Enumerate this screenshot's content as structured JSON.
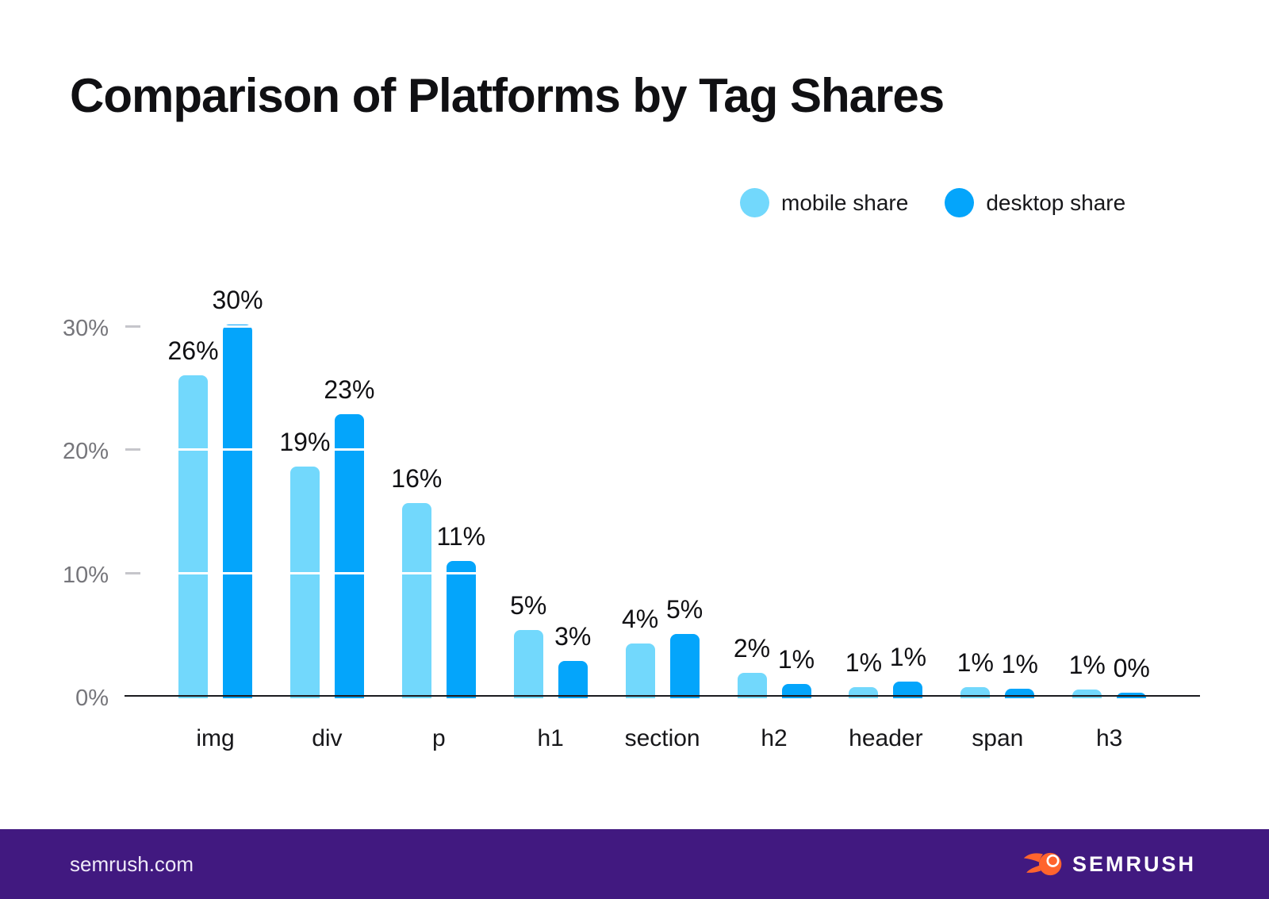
{
  "title": "Comparison of Platforms by Tag Shares",
  "chart_data": {
    "type": "bar",
    "title": "Comparison of Platforms by Tag Shares",
    "xlabel": "",
    "ylabel": "",
    "categories": [
      "img",
      "div",
      "p",
      "h1",
      "section",
      "h2",
      "header",
      "span",
      "h3"
    ],
    "series": [
      {
        "name": "mobile share",
        "color": "#72d8fc",
        "values": [
          26,
          19,
          16,
          5,
          4,
          2,
          1,
          1,
          1
        ],
        "labels": [
          "26%",
          "19%",
          "16%",
          "5%",
          "4%",
          "2%",
          "1%",
          "1%",
          "1%"
        ],
        "bar_heights_pct": [
          26.1,
          18.7,
          15.7,
          5.4,
          4.3,
          1.9,
          0.8,
          0.8,
          0.6
        ]
      },
      {
        "name": "desktop share",
        "color": "#04a5fb",
        "values": [
          30,
          23,
          11,
          3,
          5,
          1,
          1,
          1,
          0
        ],
        "labels": [
          "30%",
          "23%",
          "11%",
          "3%",
          "5%",
          "1%",
          "1%",
          "1%",
          "0%"
        ],
        "bar_heights_pct": [
          30.2,
          22.9,
          11.0,
          2.9,
          5.1,
          1.05,
          1.2,
          0.65,
          0.35
        ]
      }
    ],
    "y_ticks": [
      {
        "label": "30%",
        "value": 30
      },
      {
        "label": "20%",
        "value": 20
      },
      {
        "label": "10%",
        "value": 10
      },
      {
        "label": "0%",
        "value": 0
      }
    ],
    "ylim": [
      0,
      32
    ],
    "grid": "horizontal gridlines rendered as white lines over bars",
    "legend_position": "top-right"
  },
  "footer": {
    "site": "semrush.com",
    "brand": "SEMRUSH"
  },
  "colors": {
    "mobile": "#72d8fc",
    "desktop": "#04a5fb",
    "footer_bg": "#411980",
    "logo_orange": "#ff642d",
    "axis": "#1b1b1f",
    "tick": "#c6c6cb",
    "y_label": "#76767b",
    "text": "#101013"
  }
}
